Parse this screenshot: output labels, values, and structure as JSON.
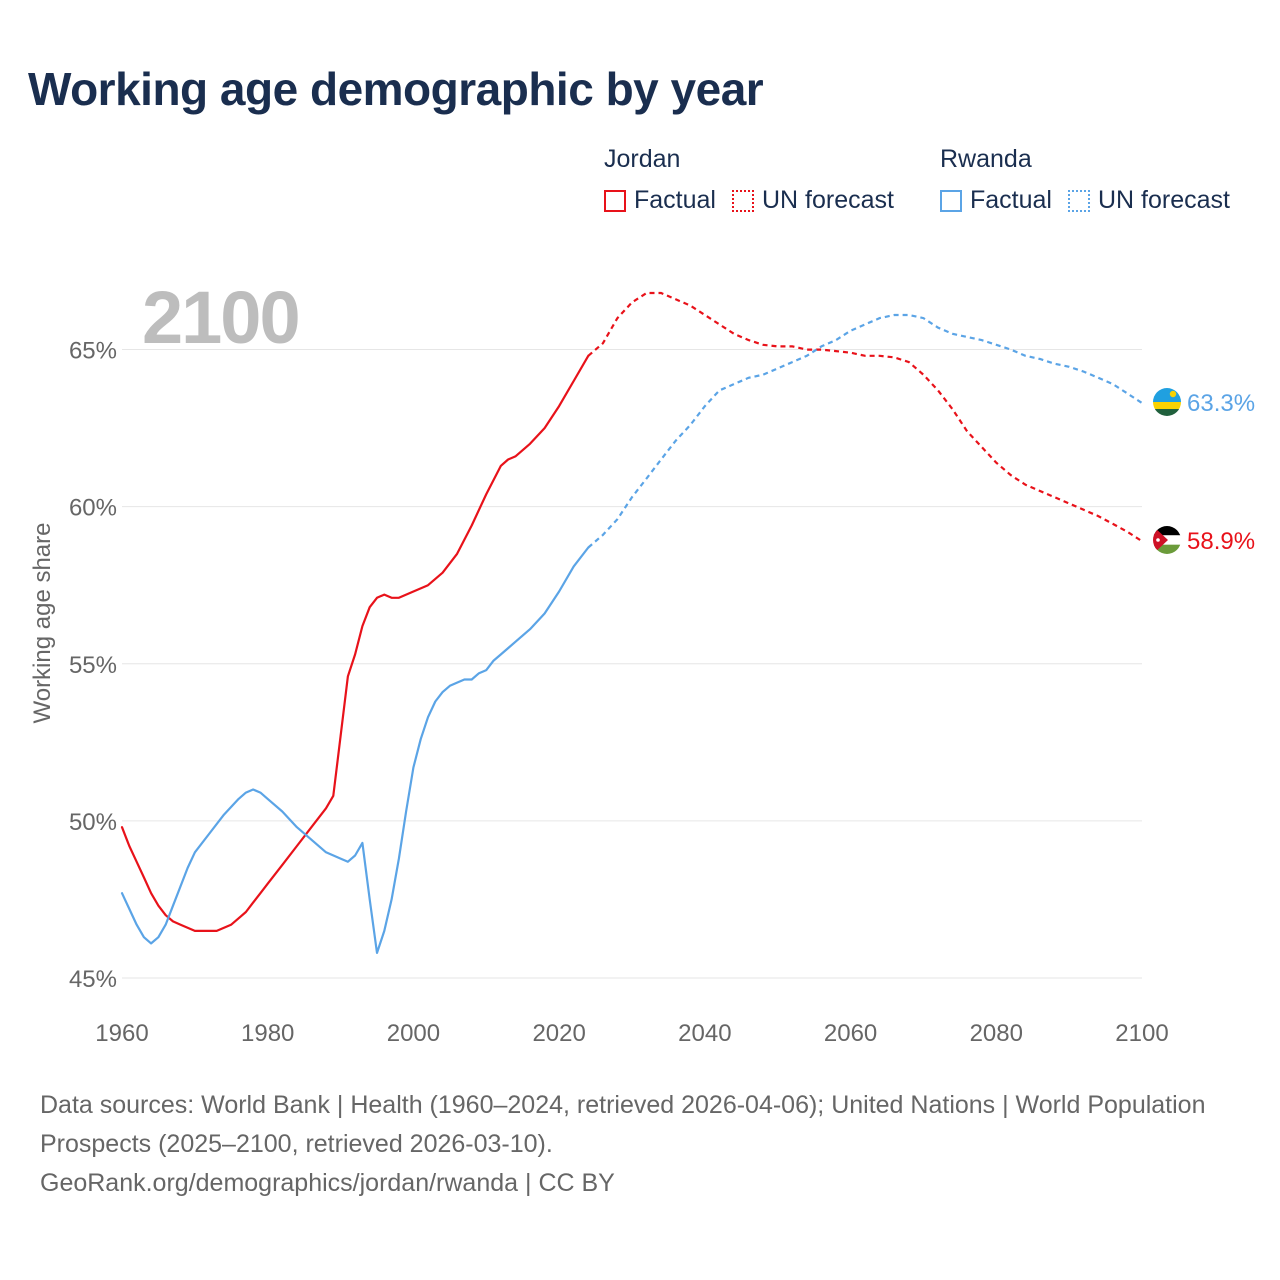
{
  "title": "Working age demographic by year",
  "year_watermark": "2100",
  "legend": {
    "groups": [
      {
        "country": "Jordan",
        "factual_label": "Factual",
        "forecast_label": "UN forecast",
        "color": "#e8121a"
      },
      {
        "country": "Rwanda",
        "factual_label": "Factual",
        "forecast_label": "UN forecast",
        "color": "#5ba4e6"
      }
    ]
  },
  "footer": {
    "sources": "Data sources: World Bank | Health (1960–2024, retrieved 2026-04-06); United Nations | World Population Prospects (2025–2100, retrieved 2026-03-10).",
    "credit": "GeoRank.org/demographics/jordan/rwanda | CC BY"
  },
  "chart_data": {
    "type": "line",
    "title": "Working age demographic by year",
    "xlabel": "",
    "ylabel": "Working age share",
    "xlim": [
      1960,
      2100
    ],
    "ylim": [
      45,
      67.5
    ],
    "x_ticks": [
      1960,
      1980,
      2000,
      2020,
      2040,
      2060,
      2080,
      2100
    ],
    "y_ticks": [
      45,
      50,
      55,
      60,
      65
    ],
    "y_tick_labels": [
      "45%",
      "50%",
      "55%",
      "60%",
      "65%"
    ],
    "grid": true,
    "factual_until": 2024,
    "series": [
      {
        "name": "Jordan",
        "color": "#e8121a",
        "end_label": "58.9%",
        "flag": "jordan-flag",
        "points": [
          [
            1960,
            49.8
          ],
          [
            1961,
            49.2
          ],
          [
            1962,
            48.7
          ],
          [
            1963,
            48.2
          ],
          [
            1964,
            47.7
          ],
          [
            1965,
            47.3
          ],
          [
            1966,
            47.0
          ],
          [
            1967,
            46.8
          ],
          [
            1968,
            46.7
          ],
          [
            1969,
            46.6
          ],
          [
            1970,
            46.5
          ],
          [
            1971,
            46.5
          ],
          [
            1972,
            46.5
          ],
          [
            1973,
            46.5
          ],
          [
            1974,
            46.6
          ],
          [
            1975,
            46.7
          ],
          [
            1976,
            46.9
          ],
          [
            1977,
            47.1
          ],
          [
            1978,
            47.4
          ],
          [
            1979,
            47.7
          ],
          [
            1980,
            48.0
          ],
          [
            1982,
            48.6
          ],
          [
            1984,
            49.2
          ],
          [
            1986,
            49.8
          ],
          [
            1988,
            50.4
          ],
          [
            1989,
            50.8
          ],
          [
            1990,
            52.7
          ],
          [
            1991,
            54.6
          ],
          [
            1992,
            55.3
          ],
          [
            1993,
            56.2
          ],
          [
            1994,
            56.8
          ],
          [
            1995,
            57.1
          ],
          [
            1996,
            57.2
          ],
          [
            1997,
            57.1
          ],
          [
            1998,
            57.1
          ],
          [
            2000,
            57.3
          ],
          [
            2002,
            57.5
          ],
          [
            2004,
            57.9
          ],
          [
            2006,
            58.5
          ],
          [
            2008,
            59.4
          ],
          [
            2010,
            60.4
          ],
          [
            2012,
            61.3
          ],
          [
            2013,
            61.5
          ],
          [
            2014,
            61.6
          ],
          [
            2016,
            62.0
          ],
          [
            2018,
            62.5
          ],
          [
            2020,
            63.2
          ],
          [
            2022,
            64.0
          ],
          [
            2024,
            64.8
          ],
          [
            2026,
            65.2
          ],
          [
            2028,
            66.0
          ],
          [
            2030,
            66.5
          ],
          [
            2032,
            66.8
          ],
          [
            2034,
            66.8
          ],
          [
            2036,
            66.6
          ],
          [
            2038,
            66.4
          ],
          [
            2040,
            66.1
          ],
          [
            2042,
            65.8
          ],
          [
            2044,
            65.5
          ],
          [
            2046,
            65.3
          ],
          [
            2048,
            65.15
          ],
          [
            2050,
            65.1
          ],
          [
            2052,
            65.1
          ],
          [
            2054,
            65.0
          ],
          [
            2056,
            65.0
          ],
          [
            2058,
            64.95
          ],
          [
            2060,
            64.9
          ],
          [
            2062,
            64.8
          ],
          [
            2064,
            64.8
          ],
          [
            2066,
            64.75
          ],
          [
            2068,
            64.6
          ],
          [
            2070,
            64.2
          ],
          [
            2072,
            63.7
          ],
          [
            2074,
            63.1
          ],
          [
            2076,
            62.4
          ],
          [
            2078,
            61.9
          ],
          [
            2080,
            61.4
          ],
          [
            2082,
            61.0
          ],
          [
            2084,
            60.7
          ],
          [
            2086,
            60.5
          ],
          [
            2088,
            60.3
          ],
          [
            2090,
            60.1
          ],
          [
            2092,
            59.9
          ],
          [
            2094,
            59.7
          ],
          [
            2096,
            59.45
          ],
          [
            2098,
            59.2
          ],
          [
            2100,
            58.9
          ]
        ]
      },
      {
        "name": "Rwanda",
        "color": "#5ba4e6",
        "end_label": "63.3%",
        "flag": "rwanda-flag",
        "points": [
          [
            1960,
            47.7
          ],
          [
            1961,
            47.2
          ],
          [
            1962,
            46.7
          ],
          [
            1963,
            46.3
          ],
          [
            1964,
            46.1
          ],
          [
            1965,
            46.3
          ],
          [
            1966,
            46.7
          ],
          [
            1967,
            47.3
          ],
          [
            1968,
            47.9
          ],
          [
            1969,
            48.5
          ],
          [
            1970,
            49.0
          ],
          [
            1972,
            49.6
          ],
          [
            1974,
            50.2
          ],
          [
            1976,
            50.7
          ],
          [
            1977,
            50.9
          ],
          [
            1978,
            51.0
          ],
          [
            1979,
            50.9
          ],
          [
            1980,
            50.7
          ],
          [
            1982,
            50.3
          ],
          [
            1984,
            49.8
          ],
          [
            1986,
            49.4
          ],
          [
            1988,
            49.0
          ],
          [
            1990,
            48.8
          ],
          [
            1991,
            48.7
          ],
          [
            1992,
            48.9
          ],
          [
            1993,
            49.3
          ],
          [
            1994,
            47.5
          ],
          [
            1995,
            45.8
          ],
          [
            1996,
            46.5
          ],
          [
            1997,
            47.5
          ],
          [
            1998,
            48.8
          ],
          [
            1999,
            50.3
          ],
          [
            2000,
            51.7
          ],
          [
            2001,
            52.6
          ],
          [
            2002,
            53.3
          ],
          [
            2003,
            53.8
          ],
          [
            2004,
            54.1
          ],
          [
            2005,
            54.3
          ],
          [
            2006,
            54.4
          ],
          [
            2007,
            54.5
          ],
          [
            2008,
            54.5
          ],
          [
            2009,
            54.7
          ],
          [
            2010,
            54.8
          ],
          [
            2011,
            55.1
          ],
          [
            2012,
            55.3
          ],
          [
            2014,
            55.7
          ],
          [
            2016,
            56.1
          ],
          [
            2018,
            56.6
          ],
          [
            2020,
            57.3
          ],
          [
            2022,
            58.1
          ],
          [
            2024,
            58.7
          ],
          [
            2026,
            59.1
          ],
          [
            2028,
            59.6
          ],
          [
            2030,
            60.3
          ],
          [
            2032,
            60.9
          ],
          [
            2034,
            61.5
          ],
          [
            2036,
            62.1
          ],
          [
            2038,
            62.6
          ],
          [
            2040,
            63.2
          ],
          [
            2042,
            63.7
          ],
          [
            2044,
            63.9
          ],
          [
            2046,
            64.1
          ],
          [
            2048,
            64.2
          ],
          [
            2050,
            64.4
          ],
          [
            2052,
            64.6
          ],
          [
            2054,
            64.8
          ],
          [
            2056,
            65.1
          ],
          [
            2058,
            65.3
          ],
          [
            2060,
            65.6
          ],
          [
            2062,
            65.8
          ],
          [
            2064,
            66.0
          ],
          [
            2066,
            66.1
          ],
          [
            2068,
            66.1
          ],
          [
            2070,
            66.0
          ],
          [
            2072,
            65.7
          ],
          [
            2074,
            65.5
          ],
          [
            2076,
            65.4
          ],
          [
            2078,
            65.3
          ],
          [
            2080,
            65.15
          ],
          [
            2082,
            65.0
          ],
          [
            2084,
            64.8
          ],
          [
            2086,
            64.7
          ],
          [
            2088,
            64.55
          ],
          [
            2090,
            64.45
          ],
          [
            2092,
            64.3
          ],
          [
            2094,
            64.1
          ],
          [
            2096,
            63.9
          ],
          [
            2098,
            63.6
          ],
          [
            2100,
            63.3
          ]
        ]
      }
    ]
  }
}
